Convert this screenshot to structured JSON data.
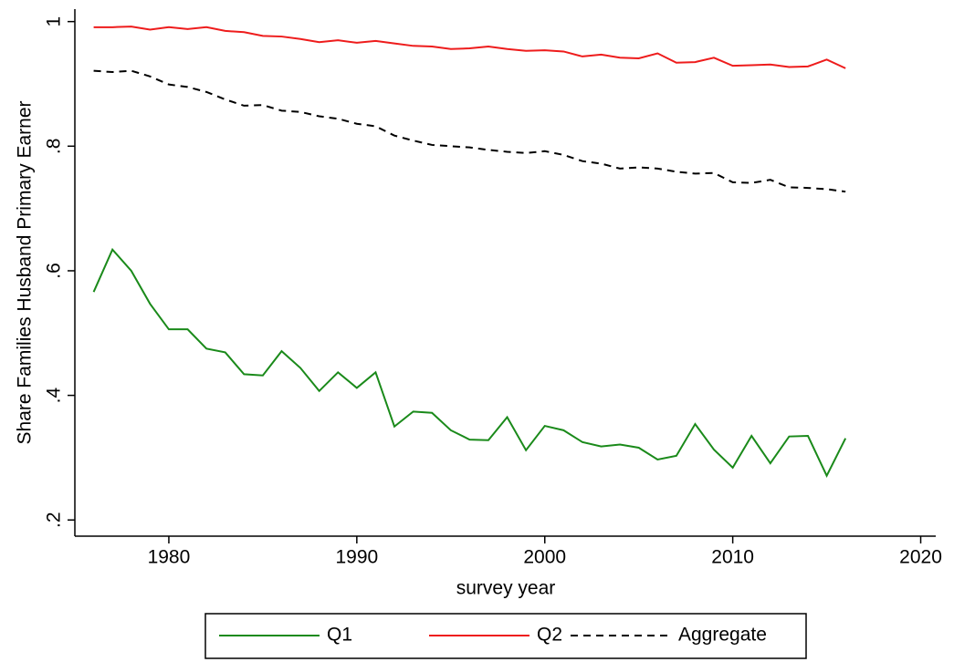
{
  "chart_data": {
    "type": "line",
    "x_label": "survey year",
    "y_label": "Share Families Husband Primary Earner",
    "x": [
      1976,
      1977,
      1978,
      1979,
      1980,
      1981,
      1982,
      1983,
      1984,
      1985,
      1986,
      1987,
      1988,
      1989,
      1990,
      1991,
      1992,
      1993,
      1994,
      1995,
      1996,
      1997,
      1998,
      1999,
      2000,
      2001,
      2002,
      2003,
      2004,
      2005,
      2006,
      2007,
      2008,
      2009,
      2010,
      2011,
      2012,
      2013,
      2014,
      2015,
      2016
    ],
    "series": [
      {
        "name": "Q1",
        "color": "#1a8a1a",
        "style": "solid",
        "values": [
          0.566,
          0.634,
          0.6,
          0.547,
          0.506,
          0.506,
          0.475,
          0.469,
          0.434,
          0.432,
          0.471,
          0.444,
          0.407,
          0.437,
          0.412,
          0.437,
          0.35,
          0.374,
          0.372,
          0.344,
          0.329,
          0.328,
          0.365,
          0.312,
          0.351,
          0.344,
          0.325,
          0.318,
          0.321,
          0.316,
          0.297,
          0.303,
          0.354,
          0.313,
          0.284,
          0.335,
          0.291,
          0.334,
          0.335,
          0.271,
          0.331
        ]
      },
      {
        "name": "Q2",
        "color": "#ee1c1c",
        "style": "solid",
        "values": [
          0.991,
          0.991,
          0.992,
          0.987,
          0.991,
          0.988,
          0.991,
          0.985,
          0.983,
          0.977,
          0.976,
          0.972,
          0.967,
          0.97,
          0.966,
          0.969,
          0.965,
          0.961,
          0.96,
          0.956,
          0.957,
          0.96,
          0.956,
          0.953,
          0.954,
          0.952,
          0.944,
          0.947,
          0.942,
          0.941,
          0.949,
          0.934,
          0.935,
          0.942,
          0.929,
          0.93,
          0.931,
          0.927,
          0.928,
          0.939,
          0.925
        ]
      },
      {
        "name": "Aggregate",
        "color": "#000000",
        "style": "dashed",
        "values": [
          0.921,
          0.919,
          0.921,
          0.912,
          0.899,
          0.895,
          0.887,
          0.875,
          0.865,
          0.866,
          0.857,
          0.855,
          0.848,
          0.844,
          0.836,
          0.832,
          0.817,
          0.809,
          0.802,
          0.8,
          0.798,
          0.794,
          0.791,
          0.789,
          0.792,
          0.786,
          0.776,
          0.772,
          0.764,
          0.766,
          0.764,
          0.759,
          0.756,
          0.757,
          0.742,
          0.741,
          0.746,
          0.734,
          0.733,
          0.731,
          0.727
        ]
      }
    ],
    "xlim": [
      1975,
      2020.8
    ],
    "xticks": [
      1980,
      1990,
      2000,
      2010,
      2020
    ],
    "ylim": [
      0.174,
      1.02
    ],
    "yticks": [
      {
        "value": 0.2,
        "label": ".2"
      },
      {
        "value": 0.4,
        "label": ".4"
      },
      {
        "value": 0.6,
        "label": ".6"
      },
      {
        "value": 0.8,
        "label": ".8"
      },
      1
    ],
    "legend": "bottom"
  }
}
